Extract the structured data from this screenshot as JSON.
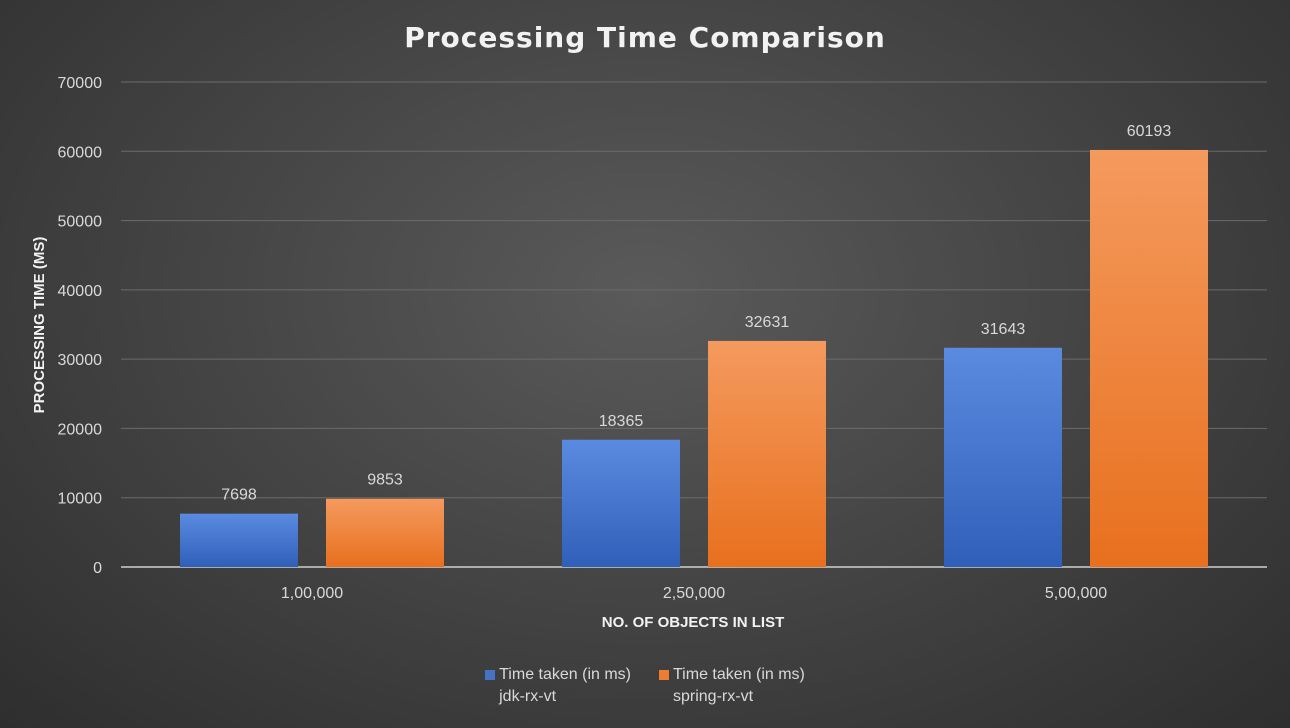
{
  "chart_data": {
    "type": "bar",
    "title": "Processing Time Comparison",
    "xlabel": "NO. OF OBJECTS IN LIST",
    "ylabel": "PROCESSING TIME (MS)",
    "categories": [
      "1,00,000",
      "2,50,000",
      "5,00,000"
    ],
    "ylim": [
      0,
      70000
    ],
    "yticks": [
      0,
      10000,
      20000,
      30000,
      40000,
      50000,
      60000,
      70000
    ],
    "grid": true,
    "legend_position": "bottom",
    "series": [
      {
        "name": "Time taken (in ms) jdk-rx-vt",
        "legend_line1": "Time taken (in ms)",
        "legend_line2": "jdk-rx-vt",
        "color": "#4472c4",
        "color_light": "#5b8be0",
        "values": [
          7698,
          18365,
          31643
        ]
      },
      {
        "name": "Time taken (in ms) spring-rx-vt",
        "legend_line1": "Time taken (in ms)",
        "legend_line2": "spring-rx-vt",
        "color": "#ed7d31",
        "color_light": "#f49a5e",
        "values": [
          9853,
          32631,
          60193
        ]
      }
    ]
  }
}
